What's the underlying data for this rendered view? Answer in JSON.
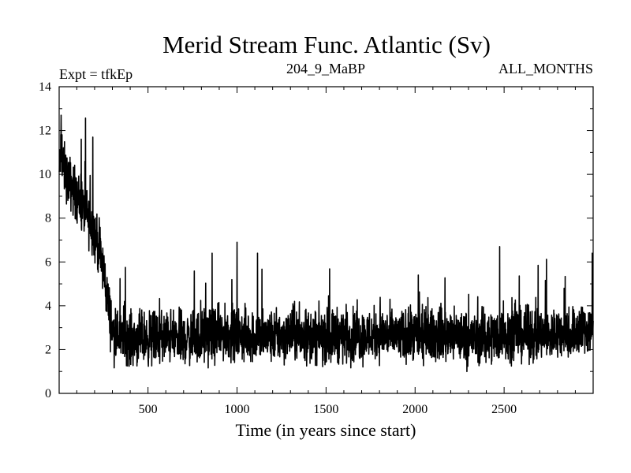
{
  "chart_data": {
    "type": "line",
    "title": "Merid Stream Func. Atlantic (Sv)",
    "subtitle_left": "Expt = tfkEp",
    "subtitle_center": "204_9_MaBP",
    "subtitle_right": "ALL_MONTHS",
    "xlabel": "Time (in years since start)",
    "ylabel": "",
    "xlim": [
      1,
      3000
    ],
    "ylim": [
      0,
      14
    ],
    "x_ticks": [
      500,
      1000,
      1500,
      2000,
      2500
    ],
    "y_ticks": [
      0,
      2,
      4,
      6,
      8,
      10,
      12,
      14
    ],
    "grid": false,
    "line_color": "#000000",
    "series": [
      {
        "x": [
          1,
          10,
          25,
          50,
          75,
          100,
          125,
          150,
          175,
          200,
          225,
          250,
          275,
          300,
          350,
          400,
          500,
          600,
          700,
          800,
          900,
          1000,
          1100,
          1200,
          1300,
          1400,
          1500,
          1600,
          1700,
          1800,
          1900,
          2000,
          2100,
          2200,
          2300,
          2400,
          2500,
          2600,
          2700,
          2800,
          2900,
          3000
        ],
        "y": [
          10.0,
          11.0,
          10.3,
          9.8,
          9.4,
          9.0,
          8.6,
          8.2,
          7.8,
          7.3,
          6.6,
          5.6,
          4.2,
          2.8,
          2.6,
          2.5,
          2.5,
          2.6,
          2.5,
          2.6,
          2.7,
          2.7,
          2.6,
          2.6,
          2.7,
          2.6,
          2.6,
          2.7,
          2.6,
          2.7,
          2.6,
          2.6,
          2.7,
          2.6,
          2.5,
          2.6,
          2.7,
          2.7,
          2.6,
          2.7,
          2.8,
          3.0
        ],
        "noise_amplitude": 0.9
      }
    ],
    "notable_spikes": [
      {
        "x": 12,
        "y": 12.7
      },
      {
        "x": 190,
        "y": 11.7
      },
      {
        "x": 860,
        "y": 6.4
      },
      {
        "x": 1000,
        "y": 6.9
      },
      {
        "x": 1115,
        "y": 6.4
      },
      {
        "x": 2475,
        "y": 6.7
      },
      {
        "x": 2995,
        "y": 6.4
      }
    ]
  }
}
